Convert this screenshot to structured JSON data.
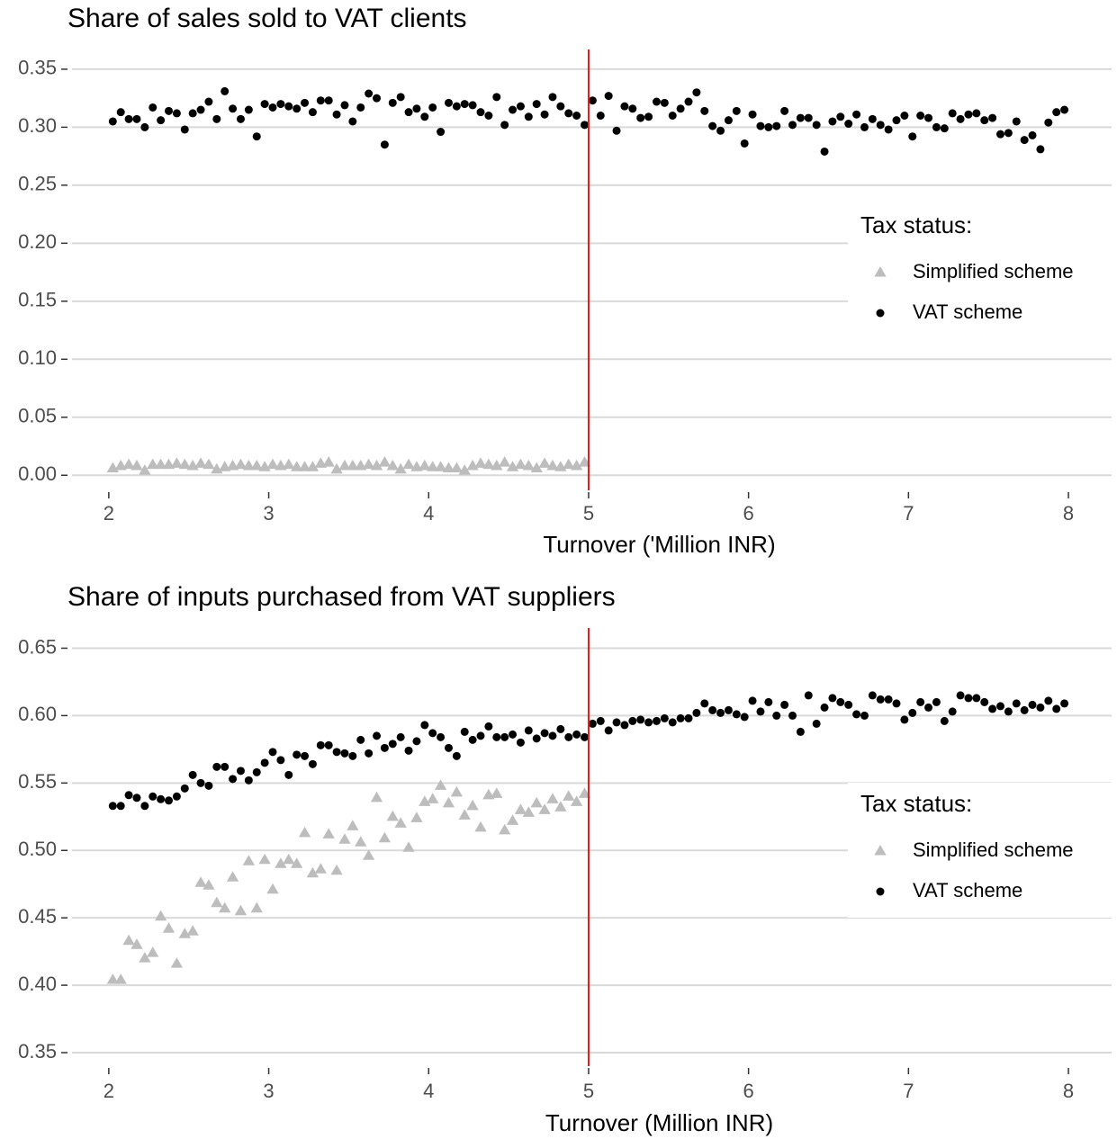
{
  "chart_data": [
    {
      "type": "scatter",
      "title": "Share of sales sold to  VAT  clients",
      "x_label": "Turnover ('Million INR)",
      "xlim": [
        1.77,
        8.27
      ],
      "ylim": [
        -0.013,
        0.367
      ],
      "xticks": [
        2,
        3,
        4,
        5,
        6,
        7,
        8
      ],
      "yticks": [
        {
          "value": 0,
          "label": "0.00"
        },
        0.05,
        {
          "value": 0.1,
          "label": "0.10"
        },
        0.15,
        {
          "value": 0.2,
          "label": "0.20"
        },
        0.25,
        {
          "value": 0.3,
          "label": "0.30"
        },
        0.35
      ],
      "grid": true,
      "vline": 5,
      "vline_color": "#e41a1c",
      "legend_title": "Tax status:",
      "legend": "right",
      "series": [
        {
          "name": "Simplified scheme",
          "color": "#bdbdbd",
          "marker": "triangle",
          "x": [
            2.025,
            2.075,
            2.125,
            2.175,
            2.225,
            2.275,
            2.325,
            2.375,
            2.425,
            2.475,
            2.525,
            2.575,
            2.625,
            2.675,
            2.725,
            2.775,
            2.825,
            2.875,
            2.925,
            2.975,
            3.025,
            3.075,
            3.125,
            3.175,
            3.225,
            3.275,
            3.325,
            3.375,
            3.425,
            3.475,
            3.525,
            3.575,
            3.625,
            3.675,
            3.725,
            3.775,
            3.825,
            3.875,
            3.925,
            3.975,
            4.025,
            4.075,
            4.125,
            4.175,
            4.225,
            4.275,
            4.325,
            4.375,
            4.425,
            4.475,
            4.525,
            4.575,
            4.625,
            4.675,
            4.725,
            4.775,
            4.825,
            4.875,
            4.925,
            4.975
          ],
          "values": [
            0.006,
            0.008,
            0.009,
            0.008,
            0.004,
            0.009,
            0.009,
            0.009,
            0.01,
            0.009,
            0.008,
            0.01,
            0.009,
            0.005,
            0.007,
            0.008,
            0.009,
            0.008,
            0.008,
            0.007,
            0.009,
            0.008,
            0.009,
            0.007,
            0.007,
            0.007,
            0.01,
            0.011,
            0.005,
            0.008,
            0.008,
            0.008,
            0.009,
            0.008,
            0.011,
            0.008,
            0.005,
            0.009,
            0.007,
            0.008,
            0.007,
            0.007,
            0.006,
            0.006,
            0.004,
            0.008,
            0.01,
            0.009,
            0.008,
            0.011,
            0.007,
            0.009,
            0.008,
            0.006,
            0.01,
            0.008,
            0.007,
            0.009,
            0.008,
            0.011
          ]
        },
        {
          "name": "VAT scheme",
          "color": "#000000",
          "marker": "circle",
          "x": [
            2.025,
            2.075,
            2.125,
            2.175,
            2.225,
            2.275,
            2.325,
            2.375,
            2.425,
            2.475,
            2.525,
            2.575,
            2.625,
            2.675,
            2.725,
            2.775,
            2.825,
            2.875,
            2.925,
            2.975,
            3.025,
            3.075,
            3.125,
            3.175,
            3.225,
            3.275,
            3.325,
            3.375,
            3.425,
            3.475,
            3.525,
            3.575,
            3.625,
            3.675,
            3.725,
            3.775,
            3.825,
            3.875,
            3.925,
            3.975,
            4.025,
            4.075,
            4.125,
            4.175,
            4.225,
            4.275,
            4.325,
            4.375,
            4.425,
            4.475,
            4.525,
            4.575,
            4.625,
            4.675,
            4.725,
            4.775,
            4.825,
            4.875,
            4.925,
            4.975,
            5.025,
            5.075,
            5.125,
            5.175,
            5.225,
            5.275,
            5.325,
            5.375,
            5.425,
            5.475,
            5.525,
            5.575,
            5.625,
            5.675,
            5.725,
            5.775,
            5.825,
            5.875,
            5.925,
            5.975,
            6.025,
            6.075,
            6.125,
            6.175,
            6.225,
            6.275,
            6.325,
            6.375,
            6.425,
            6.475,
            6.525,
            6.575,
            6.625,
            6.675,
            6.725,
            6.775,
            6.825,
            6.875,
            6.925,
            6.975,
            7.025,
            7.075,
            7.125,
            7.175,
            7.225,
            7.275,
            7.325,
            7.375,
            7.425,
            7.475,
            7.525,
            7.575,
            7.625,
            7.675,
            7.725,
            7.775,
            7.825,
            7.875,
            7.925,
            7.975
          ],
          "values": [
            0.305,
            0.313,
            0.307,
            0.307,
            0.3,
            0.317,
            0.306,
            0.314,
            0.312,
            0.298,
            0.312,
            0.315,
            0.322,
            0.307,
            0.331,
            0.316,
            0.307,
            0.315,
            0.292,
            0.32,
            0.317,
            0.32,
            0.318,
            0.316,
            0.321,
            0.313,
            0.323,
            0.323,
            0.311,
            0.319,
            0.305,
            0.317,
            0.329,
            0.325,
            0.285,
            0.321,
            0.326,
            0.313,
            0.316,
            0.309,
            0.317,
            0.296,
            0.321,
            0.318,
            0.32,
            0.319,
            0.313,
            0.31,
            0.326,
            0.302,
            0.315,
            0.318,
            0.309,
            0.32,
            0.311,
            0.326,
            0.318,
            0.312,
            0.31,
            0.302,
            0.323,
            0.31,
            0.327,
            0.297,
            0.318,
            0.316,
            0.308,
            0.309,
            0.322,
            0.321,
            0.31,
            0.316,
            0.322,
            0.33,
            0.314,
            0.301,
            0.297,
            0.306,
            0.314,
            0.286,
            0.311,
            0.301,
            0.3,
            0.301,
            0.314,
            0.302,
            0.308,
            0.308,
            0.302,
            0.279,
            0.305,
            0.309,
            0.303,
            0.311,
            0.3,
            0.307,
            0.302,
            0.298,
            0.306,
            0.31,
            0.292,
            0.31,
            0.308,
            0.3,
            0.299,
            0.312,
            0.307,
            0.311,
            0.312,
            0.306,
            0.308,
            0.294,
            0.295,
            0.305,
            0.289,
            0.293,
            0.281,
            0.304,
            0.313,
            0.315
          ]
        }
      ]
    },
    {
      "type": "scatter",
      "title": "Share of inputs purchased from  VAT suppliers",
      "x_label": "Turnover (Million INR)",
      "xlim": [
        1.77,
        8.27
      ],
      "ylim": [
        0.34,
        0.665
      ],
      "xticks": [
        2,
        3,
        4,
        5,
        6,
        7,
        8
      ],
      "yticks": [
        0.35,
        {
          "value": 0.4,
          "label": "0.40"
        },
        0.45,
        {
          "value": 0.5,
          "label": "0.50"
        },
        0.55,
        {
          "value": 0.6,
          "label": "0.60"
        },
        0.65
      ],
      "grid": true,
      "vline": 5,
      "vline_color": "#e41a1c",
      "legend_title": "Tax status:",
      "legend": "right",
      "series": [
        {
          "name": "Simplified scheme",
          "color": "#bdbdbd",
          "marker": "triangle",
          "x": [
            2.025,
            2.075,
            2.125,
            2.175,
            2.225,
            2.275,
            2.325,
            2.375,
            2.425,
            2.475,
            2.525,
            2.575,
            2.625,
            2.675,
            2.725,
            2.775,
            2.825,
            2.875,
            2.925,
            2.975,
            3.025,
            3.075,
            3.125,
            3.175,
            3.225,
            3.275,
            3.325,
            3.375,
            3.425,
            3.475,
            3.525,
            3.575,
            3.625,
            3.675,
            3.725,
            3.775,
            3.825,
            3.875,
            3.925,
            3.975,
            4.025,
            4.075,
            4.125,
            4.175,
            4.225,
            4.275,
            4.325,
            4.375,
            4.425,
            4.475,
            4.525,
            4.575,
            4.625,
            4.675,
            4.725,
            4.775,
            4.825,
            4.875,
            4.925,
            4.975
          ],
          "values": [
            0.404,
            0.404,
            0.433,
            0.43,
            0.42,
            0.424,
            0.451,
            0.442,
            0.416,
            0.438,
            0.44,
            0.476,
            0.474,
            0.461,
            0.457,
            0.48,
            0.455,
            0.492,
            0.457,
            0.493,
            0.471,
            0.49,
            0.493,
            0.49,
            0.513,
            0.483,
            0.486,
            0.512,
            0.485,
            0.508,
            0.518,
            0.506,
            0.496,
            0.539,
            0.509,
            0.525,
            0.52,
            0.502,
            0.524,
            0.536,
            0.538,
            0.548,
            0.535,
            0.543,
            0.526,
            0.533,
            0.517,
            0.541,
            0.542,
            0.515,
            0.522,
            0.53,
            0.528,
            0.535,
            0.53,
            0.538,
            0.532,
            0.54,
            0.536,
            0.542
          ]
        },
        {
          "name": "VAT scheme",
          "color": "#000000",
          "marker": "circle",
          "x": [
            2.025,
            2.075,
            2.125,
            2.175,
            2.225,
            2.275,
            2.325,
            2.375,
            2.425,
            2.475,
            2.525,
            2.575,
            2.625,
            2.675,
            2.725,
            2.775,
            2.825,
            2.875,
            2.925,
            2.975,
            3.025,
            3.075,
            3.125,
            3.175,
            3.225,
            3.275,
            3.325,
            3.375,
            3.425,
            3.475,
            3.525,
            3.575,
            3.625,
            3.675,
            3.725,
            3.775,
            3.825,
            3.875,
            3.925,
            3.975,
            4.025,
            4.075,
            4.125,
            4.175,
            4.225,
            4.275,
            4.325,
            4.375,
            4.425,
            4.475,
            4.525,
            4.575,
            4.625,
            4.675,
            4.725,
            4.775,
            4.825,
            4.875,
            4.925,
            4.975,
            5.025,
            5.075,
            5.125,
            5.175,
            5.225,
            5.275,
            5.325,
            5.375,
            5.425,
            5.475,
            5.525,
            5.575,
            5.625,
            5.675,
            5.725,
            5.775,
            5.825,
            5.875,
            5.925,
            5.975,
            6.025,
            6.075,
            6.125,
            6.175,
            6.225,
            6.275,
            6.325,
            6.375,
            6.425,
            6.475,
            6.525,
            6.575,
            6.625,
            6.675,
            6.725,
            6.775,
            6.825,
            6.875,
            6.925,
            6.975,
            7.025,
            7.075,
            7.125,
            7.175,
            7.225,
            7.275,
            7.325,
            7.375,
            7.425,
            7.475,
            7.525,
            7.575,
            7.625,
            7.675,
            7.725,
            7.775,
            7.825,
            7.875,
            7.925,
            7.975
          ],
          "values": [
            0.533,
            0.533,
            0.541,
            0.539,
            0.533,
            0.54,
            0.538,
            0.537,
            0.54,
            0.546,
            0.556,
            0.55,
            0.548,
            0.562,
            0.562,
            0.553,
            0.559,
            0.552,
            0.558,
            0.565,
            0.573,
            0.567,
            0.556,
            0.571,
            0.57,
            0.564,
            0.578,
            0.578,
            0.573,
            0.572,
            0.57,
            0.582,
            0.572,
            0.585,
            0.576,
            0.579,
            0.584,
            0.574,
            0.581,
            0.593,
            0.587,
            0.584,
            0.576,
            0.57,
            0.588,
            0.582,
            0.585,
            0.592,
            0.584,
            0.584,
            0.586,
            0.58,
            0.589,
            0.583,
            0.587,
            0.585,
            0.59,
            0.584,
            0.586,
            0.584,
            0.594,
            0.596,
            0.589,
            0.595,
            0.593,
            0.596,
            0.597,
            0.595,
            0.596,
            0.598,
            0.595,
            0.598,
            0.598,
            0.602,
            0.609,
            0.604,
            0.602,
            0.604,
            0.601,
            0.599,
            0.611,
            0.603,
            0.61,
            0.6,
            0.608,
            0.6,
            0.588,
            0.615,
            0.594,
            0.606,
            0.613,
            0.61,
            0.608,
            0.601,
            0.6,
            0.615,
            0.612,
            0.612,
            0.609,
            0.597,
            0.602,
            0.61,
            0.606,
            0.61,
            0.596,
            0.603,
            0.615,
            0.613,
            0.613,
            0.61,
            0.605,
            0.607,
            0.603,
            0.609,
            0.604,
            0.608,
            0.606,
            0.611,
            0.605,
            0.609
          ]
        }
      ]
    }
  ]
}
